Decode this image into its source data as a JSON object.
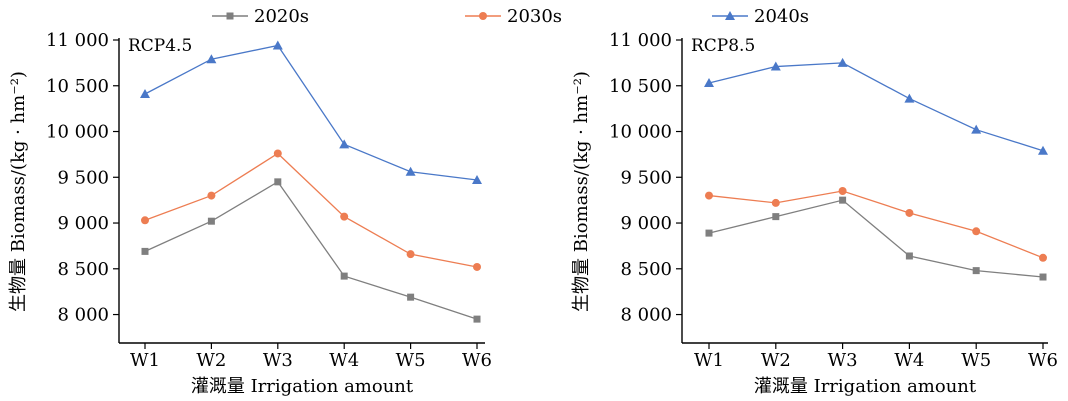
{
  "legend": [
    {
      "name": "2020s",
      "color": "#7f7f7f",
      "marker": "square"
    },
    {
      "name": "2030s",
      "color": "#ed7d52",
      "marker": "circle"
    },
    {
      "name": "2040s",
      "color": "#4a78c8",
      "marker": "triangle"
    }
  ],
  "chart_data": [
    {
      "type": "line",
      "title": "RCP4.5",
      "xlabel": "灌溉量 Irrigation amount",
      "ylabel": "生物量 Biomass/(kg · hm⁻²)",
      "categories": [
        "W1",
        "W2",
        "W3",
        "W4",
        "W5",
        "W6"
      ],
      "ylim": [
        7700,
        11000
      ],
      "yticks": [
        8000,
        8500,
        9000,
        9500,
        10000,
        10500,
        11000
      ],
      "ytick_labels": [
        "8 000",
        "8 500",
        "9 000",
        "9 500",
        "10 000",
        "10 500",
        "11 000"
      ],
      "grid": false,
      "series": [
        {
          "name": "2020s",
          "values": [
            8690,
            9020,
            9450,
            8420,
            8190,
            7950
          ]
        },
        {
          "name": "2030s",
          "values": [
            9030,
            9300,
            9760,
            9070,
            8660,
            8520
          ]
        },
        {
          "name": "2040s",
          "values": [
            10410,
            10790,
            10940,
            9860,
            9560,
            9470
          ]
        }
      ]
    },
    {
      "type": "line",
      "title": "RCP8.5",
      "xlabel": "灌溉量 Irrigation amount",
      "ylabel": "生物量 Biomass/(kg · hm⁻²)",
      "categories": [
        "W1",
        "W2",
        "W3",
        "W4",
        "W5",
        "W6"
      ],
      "ylim": [
        7700,
        11000
      ],
      "yticks": [
        8000,
        8500,
        9000,
        9500,
        10000,
        10500,
        11000
      ],
      "ytick_labels": [
        "8 000",
        "8 500",
        "9 000",
        "9 500",
        "10 000",
        "10 500",
        "11 000"
      ],
      "grid": false,
      "series": [
        {
          "name": "2020s",
          "values": [
            8890,
            9070,
            9250,
            8640,
            8480,
            8410
          ]
        },
        {
          "name": "2030s",
          "values": [
            9300,
            9220,
            9350,
            9110,
            8910,
            8620
          ]
        },
        {
          "name": "2040s",
          "values": [
            10530,
            10710,
            10750,
            10360,
            10020,
            9790
          ]
        }
      ]
    }
  ]
}
